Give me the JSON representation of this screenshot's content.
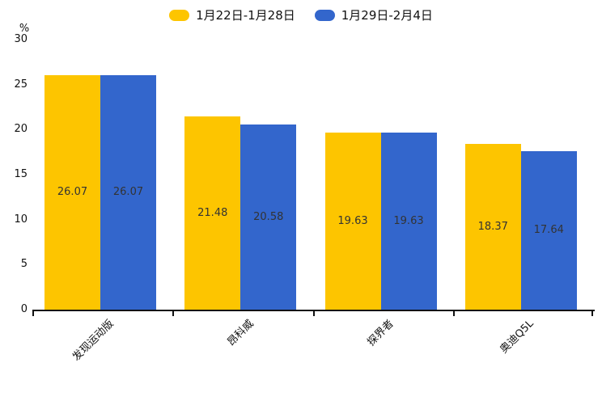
{
  "legend": {
    "items": [
      {
        "label": "1月22日-1月28日",
        "color": "#FDC500"
      },
      {
        "label": "1月29日-2月4日",
        "color": "#3366CC"
      }
    ]
  },
  "y_axis": {
    "unit": "%",
    "ticks": [
      0,
      5,
      10,
      15,
      20,
      25,
      30
    ],
    "max": 30
  },
  "chart_data": {
    "type": "bar",
    "title": "",
    "categories": [
      "发现运动版",
      "昂科威",
      "探界者",
      "奥迪Q5L"
    ],
    "series": [
      {
        "name": "1月22日-1月28日",
        "color": "#FDC500",
        "values": [
          26.07,
          21.48,
          19.63,
          18.37
        ]
      },
      {
        "name": "1月29日-2月4日",
        "color": "#3366CC",
        "values": [
          26.07,
          20.58,
          19.63,
          17.64
        ]
      }
    ],
    "xlabel": "",
    "ylabel": "%",
    "ylim": [
      0,
      30
    ],
    "grid": false,
    "legend_position": "top",
    "value_labels": "inside-center",
    "value_label_decimals": 2
  }
}
